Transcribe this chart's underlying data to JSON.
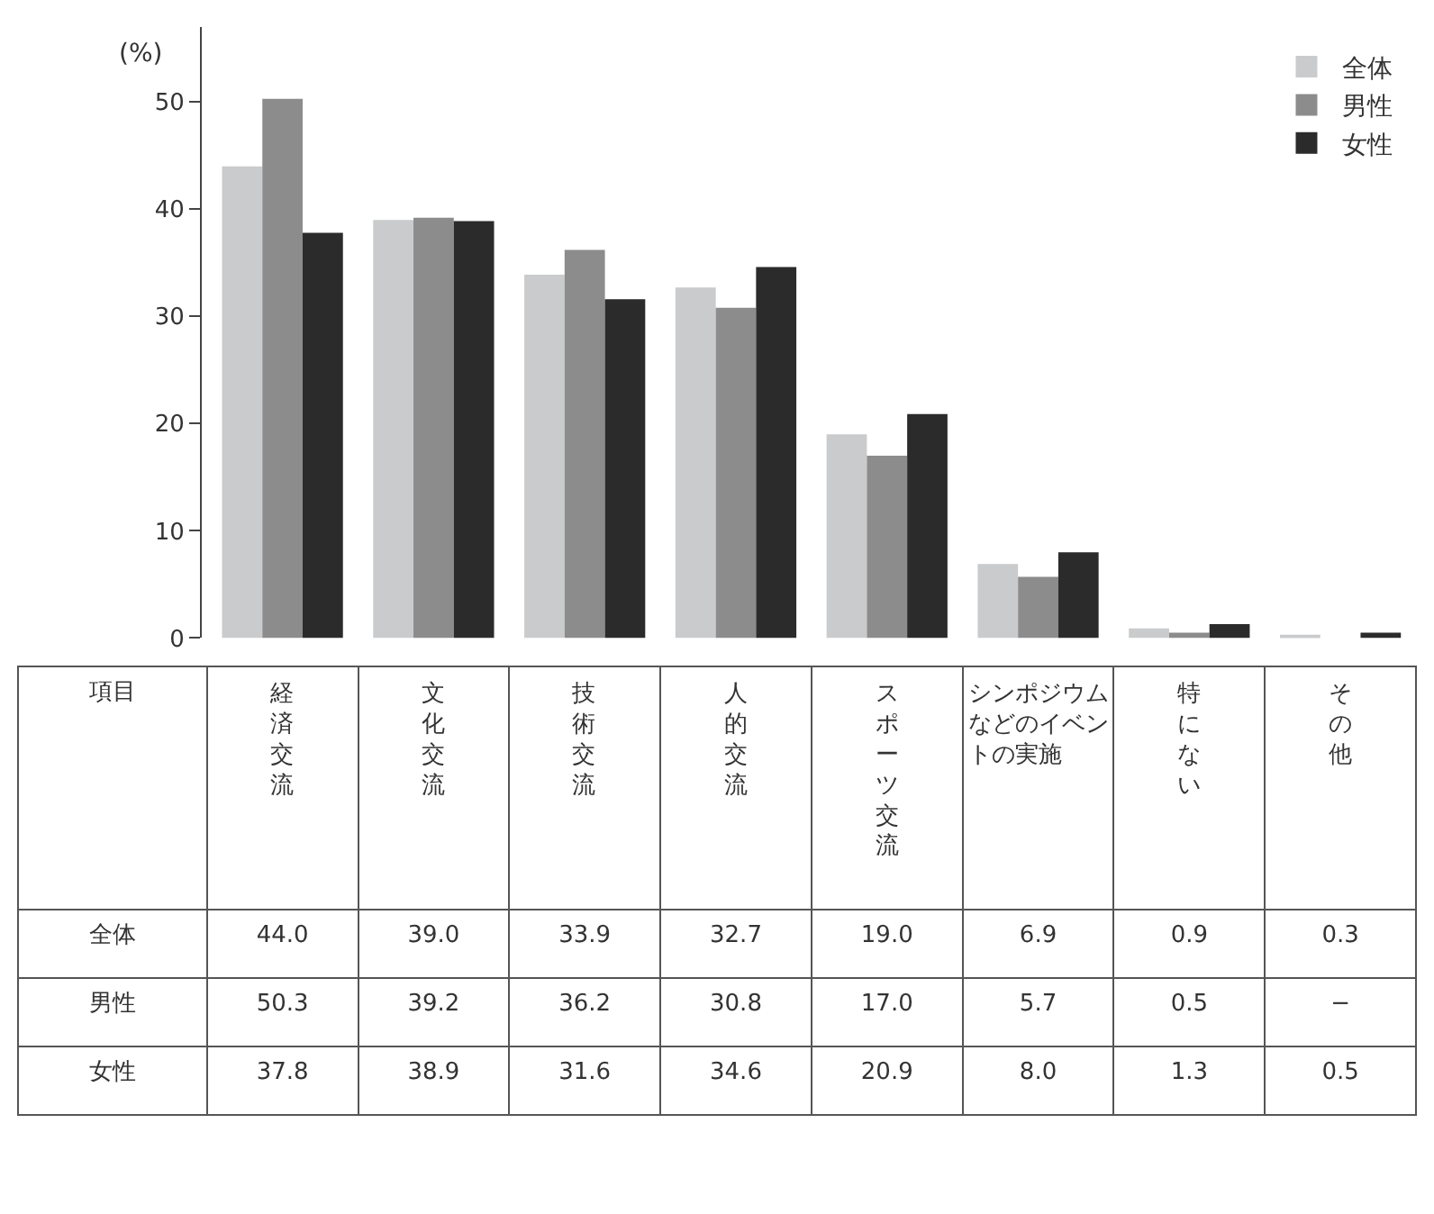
{
  "chart_data": {
    "type": "bar",
    "ylabel": "(%)",
    "annotations": [
      "項目"
    ],
    "categories": [
      "経済交流",
      "文化交流",
      "技術交流",
      "人的交流",
      "スポーツ交流",
      "シンポジウムなどのイベントの実施",
      "特にない",
      "その他"
    ],
    "series": [
      {
        "name": "全体",
        "color": "#c9cbcd",
        "values": [
          44.0,
          39.0,
          33.9,
          32.7,
          19.0,
          6.9,
          0.9,
          0.3
        ],
        "value_labels": [
          "44.0",
          "39.0",
          "33.9",
          "32.7",
          "19.0",
          "6.9",
          "0.9",
          "0.3"
        ]
      },
      {
        "name": "男性",
        "color": "#8c8c8c",
        "values": [
          50.3,
          39.2,
          36.2,
          30.8,
          17.0,
          5.7,
          0.5,
          null
        ],
        "value_labels": [
          "50.3",
          "39.2",
          "36.2",
          "30.8",
          "17.0",
          "5.7",
          "0.5",
          "−"
        ]
      },
      {
        "name": "女性",
        "color": "#2b2b2b",
        "values": [
          37.8,
          38.9,
          31.6,
          34.6,
          20.9,
          8.0,
          1.3,
          0.5
        ],
        "value_labels": [
          "37.8",
          "38.9",
          "31.6",
          "34.6",
          "20.9",
          "8.0",
          "1.3",
          "0.5"
        ]
      }
    ],
    "ylim": [
      0,
      57
    ],
    "yticks": [
      0,
      10,
      20,
      30,
      40,
      50
    ],
    "legend": "top right",
    "tick_labels": "y"
  }
}
